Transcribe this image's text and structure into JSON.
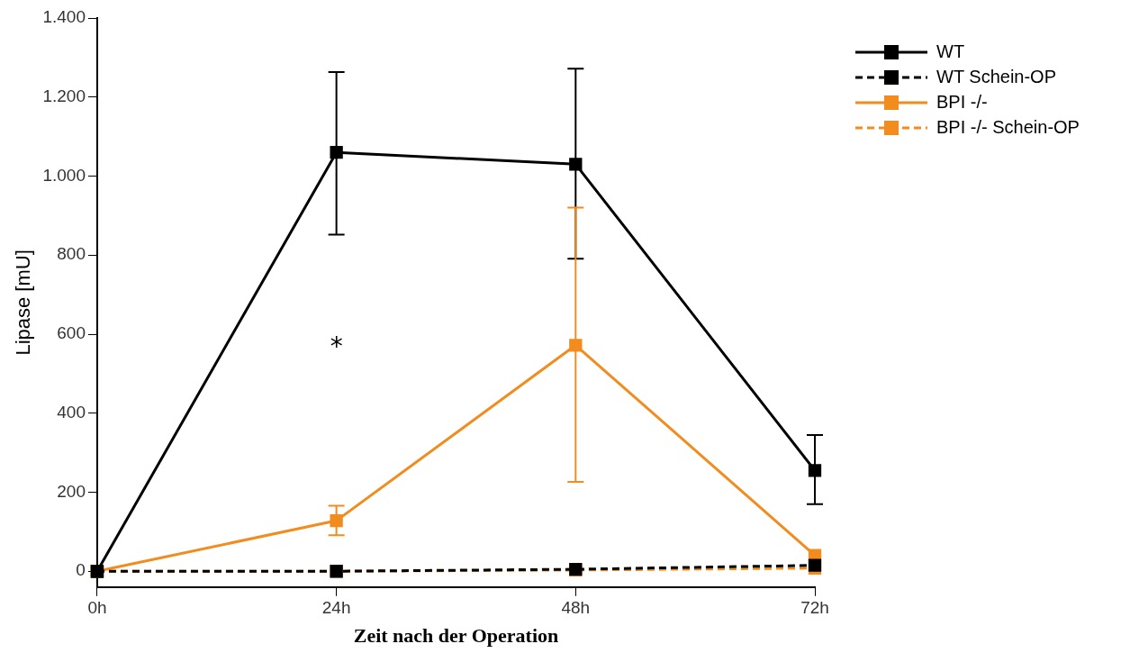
{
  "chart_data": {
    "type": "line",
    "xlabel": "Zeit nach der Operation",
    "ylabel": "Lipase [mU]",
    "categories": [
      "0h",
      "24h",
      "48h",
      "72h"
    ],
    "series": [
      {
        "name": "WT",
        "color": "#000000",
        "line_style": "solid",
        "values": [
          0,
          1060,
          1030,
          255
        ],
        "errors": [
          null,
          [
            852,
            1263
          ],
          [
            791,
            1272
          ],
          [
            170,
            345
          ]
        ]
      },
      {
        "name": "WT Schein-OP",
        "color": "#000000",
        "line_style": "dashed",
        "values": [
          0,
          0,
          5,
          15
        ]
      },
      {
        "name": "BPI -/-",
        "color": "#f28c1e",
        "line_style": "solid",
        "values": [
          0,
          128,
          572,
          40
        ],
        "errors": [
          null,
          [
            91,
            166
          ],
          [
            226,
            920
          ],
          null
        ]
      },
      {
        "name": "BPI -/- Schein-OP",
        "color": "#f28c1e",
        "line_style": "dashed",
        "values": [
          0,
          0,
          3,
          8
        ]
      }
    ],
    "ylim": [
      -40,
      1400
    ],
    "yticks": [
      {
        "value": 0,
        "label": "0"
      },
      {
        "value": 200,
        "label": "200"
      },
      {
        "value": 400,
        "label": "400"
      },
      {
        "value": 600,
        "label": "600"
      },
      {
        "value": 800,
        "label": "800"
      },
      {
        "value": 1000,
        "label": "1.000"
      },
      {
        "value": 1200,
        "label": "1.200"
      },
      {
        "value": 1400,
        "label": "1.400"
      }
    ],
    "annotations": [
      "*"
    ],
    "marker": "square",
    "grid": false,
    "legend": "top right"
  }
}
